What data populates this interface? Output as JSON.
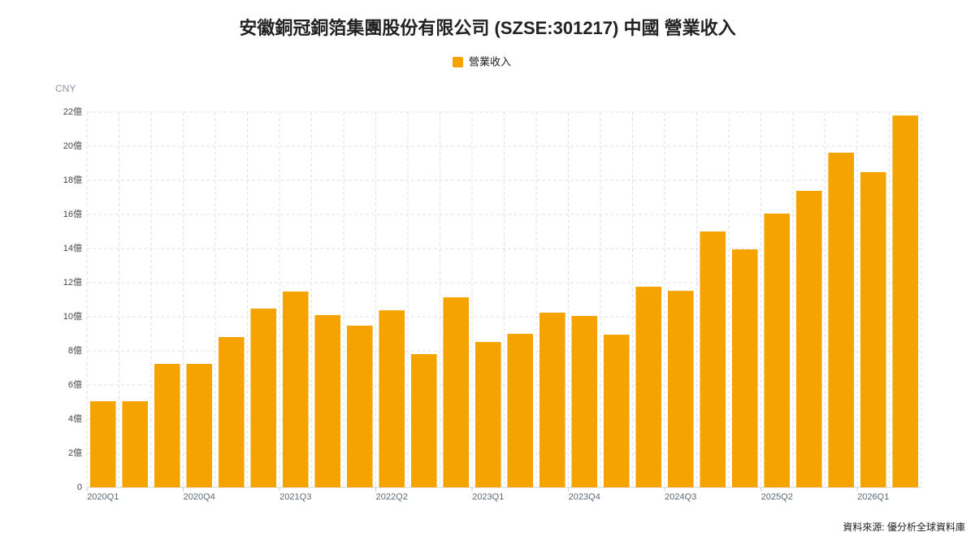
{
  "chart_data": {
    "type": "bar",
    "title": "安徽銅冠銅箔集團股份有限公司 (SZSE:301217) 中國 營業收入",
    "unit": "CNY",
    "source": "資料來源: 優分析全球資料庫",
    "categories": [
      "2020Q1",
      null,
      null,
      "2020Q4",
      null,
      null,
      "2021Q3",
      null,
      null,
      "2022Q2",
      null,
      null,
      "2023Q1",
      null,
      null,
      "2023Q4",
      null,
      null,
      "2024Q3",
      null,
      null,
      "2025Q2",
      null,
      null,
      "2026Q1",
      null
    ],
    "series": [
      {
        "name": "營業收入",
        "color": "#f5a300",
        "values": [
          5.05,
          5.05,
          7.24,
          7.24,
          8.81,
          10.48,
          11.48,
          10.1,
          9.48,
          10.38,
          7.81,
          11.14,
          8.52,
          9.0,
          10.24,
          10.05,
          8.95,
          11.76,
          11.52,
          15.0,
          13.95,
          16.05,
          17.38,
          19.62,
          18.48,
          21.8
        ]
      }
    ],
    "ylim": [
      0,
      22
    ],
    "yticks": [
      0,
      {
        "value": 2,
        "label": "2億"
      },
      {
        "value": 4,
        "label": "4億"
      },
      {
        "value": 6,
        "label": "6億"
      },
      {
        "value": 8,
        "label": "8億"
      },
      {
        "value": 10,
        "label": "10億"
      },
      {
        "value": 12,
        "label": "12億"
      },
      {
        "value": 14,
        "label": "14億"
      },
      {
        "value": 16,
        "label": "16億"
      },
      {
        "value": 18,
        "label": "18億"
      },
      {
        "value": 20,
        "label": "20億"
      },
      {
        "value": 22,
        "label": "22億"
      }
    ],
    "grid": true,
    "legend": "top"
  }
}
